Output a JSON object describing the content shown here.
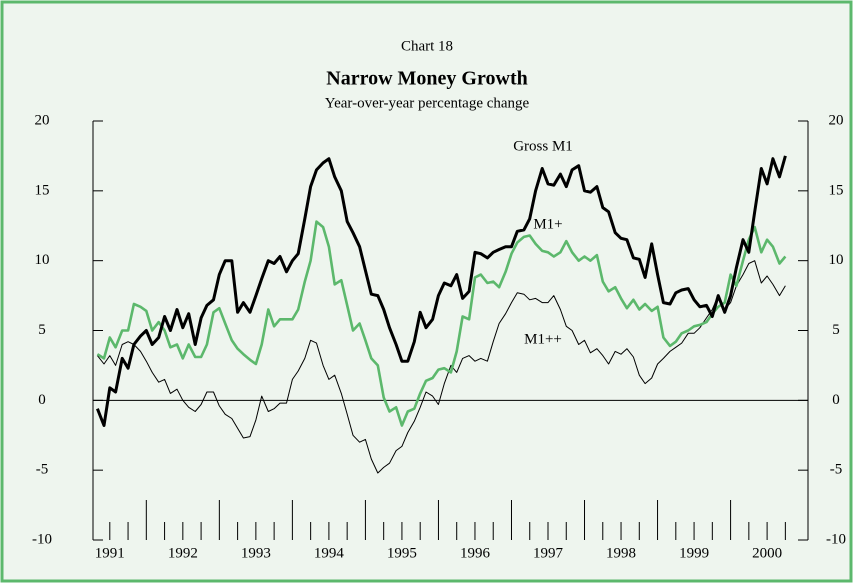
{
  "chart_data": {
    "type": "line",
    "chart_number": "Chart 18",
    "title": "Narrow Money Growth",
    "subtitle": "Year-over-year percentage change",
    "x": [
      1991.33,
      1991.42,
      1991.5,
      1991.58,
      1991.67,
      1991.75,
      1991.83,
      1991.92,
      1992.0,
      1992.08,
      1992.17,
      1992.25,
      1992.33,
      1992.42,
      1992.5,
      1992.58,
      1992.67,
      1992.75,
      1992.83,
      1992.92,
      1993.0,
      1993.08,
      1993.17,
      1993.25,
      1993.33,
      1993.42,
      1993.5,
      1993.58,
      1993.67,
      1993.75,
      1993.83,
      1993.92,
      1994.0,
      1994.08,
      1994.17,
      1994.25,
      1994.33,
      1994.42,
      1994.5,
      1994.58,
      1994.67,
      1994.75,
      1994.83,
      1994.92,
      1995.0,
      1995.08,
      1995.17,
      1995.25,
      1995.33,
      1995.42,
      1995.5,
      1995.58,
      1995.67,
      1995.75,
      1995.83,
      1995.92,
      1996.0,
      1996.08,
      1996.17,
      1996.25,
      1996.33,
      1996.42,
      1996.5,
      1996.58,
      1996.67,
      1996.75,
      1996.83,
      1996.92,
      1997.0,
      1997.08,
      1997.17,
      1997.25,
      1997.33,
      1997.42,
      1997.5,
      1997.58,
      1997.67,
      1997.75,
      1997.83,
      1997.92,
      1998.0,
      1998.08,
      1998.17,
      1998.25,
      1998.33,
      1998.42,
      1998.5,
      1998.58,
      1998.67,
      1998.75,
      1998.83,
      1998.92,
      1999.0,
      1999.08,
      1999.17,
      1999.25,
      1999.33,
      1999.42,
      1999.5,
      1999.58,
      1999.67,
      1999.75,
      1999.83,
      1999.92,
      2000.0,
      2000.08,
      2000.17,
      2000.25,
      2000.33,
      2000.42,
      2000.5,
      2000.58,
      2000.67,
      2000.75
    ],
    "series": [
      {
        "name": "Gross M1",
        "color": "#000000",
        "linewidth": 3,
        "values": [
          -0.6,
          -1.8,
          0.9,
          0.6,
          3.0,
          2.3,
          4.0,
          4.6,
          5.0,
          4.0,
          4.5,
          6.0,
          5.0,
          6.5,
          5.2,
          6.2,
          4.0,
          5.9,
          6.8,
          7.2,
          9.0,
          10.0,
          10.0,
          6.3,
          7.0,
          6.3,
          7.5,
          8.7,
          10.0,
          9.8,
          10.3,
          9.2,
          10.0,
          10.5,
          13.0,
          15.3,
          16.5,
          17.0,
          17.3,
          16.0,
          15.0,
          12.8,
          12.0,
          11.0,
          9.3,
          7.6,
          7.5,
          6.5,
          5.2,
          4.0,
          2.8,
          2.8,
          4.2,
          6.3,
          5.2,
          5.8,
          7.5,
          8.4,
          8.2,
          9.0,
          7.3,
          7.8,
          10.6,
          10.5,
          10.2,
          10.6,
          10.8,
          11.0,
          11.0,
          12.1,
          12.2,
          13.0,
          15.0,
          16.6,
          15.5,
          15.4,
          16.2,
          15.3,
          16.5,
          16.8,
          15.0,
          14.9,
          15.3,
          13.8,
          13.5,
          12.0,
          11.6,
          11.5,
          10.2,
          10.1,
          8.8,
          11.2,
          9.0,
          7.0,
          6.9,
          7.7,
          7.9,
          8.0,
          7.2,
          6.7,
          6.8,
          6.0,
          7.5,
          6.3,
          7.5,
          9.5,
          11.5,
          10.6,
          13.5,
          16.6,
          15.5,
          17.3,
          16.0,
          17.5
        ]
      },
      {
        "name": "M1+",
        "color": "#5cb86c",
        "linewidth": 2.6,
        "values": [
          3.3,
          3.0,
          4.5,
          3.8,
          5.0,
          5.0,
          6.9,
          6.7,
          6.4,
          5.0,
          5.6,
          5.0,
          3.8,
          4.0,
          3.0,
          4.0,
          3.1,
          3.1,
          4.0,
          6.3,
          6.6,
          5.5,
          4.3,
          3.7,
          3.3,
          2.9,
          2.6,
          4.0,
          6.5,
          5.3,
          5.8,
          5.8,
          5.8,
          6.5,
          8.5,
          10.0,
          12.8,
          12.4,
          11.0,
          8.3,
          8.6,
          6.8,
          5.0,
          5.5,
          4.3,
          3.0,
          2.5,
          0.2,
          -0.8,
          -0.5,
          -1.8,
          -0.8,
          -0.6,
          0.5,
          1.4,
          1.6,
          2.2,
          2.3,
          2.0,
          3.5,
          6.0,
          5.8,
          8.8,
          9.0,
          8.4,
          8.5,
          8.1,
          9.2,
          10.5,
          11.3,
          11.7,
          11.8,
          11.2,
          10.7,
          10.6,
          10.3,
          10.6,
          11.4,
          10.6,
          10.0,
          10.3,
          10.0,
          10.4,
          8.5,
          7.8,
          8.1,
          7.3,
          6.6,
          7.2,
          6.5,
          6.9,
          6.4,
          6.7,
          4.5,
          3.9,
          4.2,
          4.8,
          5.0,
          5.3,
          5.4,
          5.6,
          6.2,
          6.7,
          7.0,
          9.0,
          8.2,
          10.0,
          11.5,
          12.4,
          10.6,
          11.5,
          11.0,
          9.8,
          10.3
        ]
      },
      {
        "name": "M1++",
        "color": "#000000",
        "linewidth": 1,
        "values": [
          3.2,
          2.6,
          3.2,
          2.5,
          4.0,
          4.2,
          4.0,
          3.5,
          2.8,
          2.0,
          1.3,
          1.5,
          0.5,
          0.8,
          0.0,
          -0.5,
          -0.8,
          -0.3,
          0.6,
          0.6,
          -0.4,
          -1.0,
          -1.3,
          -2.0,
          -2.7,
          -2.6,
          -1.4,
          0.3,
          -0.8,
          -0.6,
          -0.2,
          -0.2,
          1.5,
          2.1,
          3.0,
          4.3,
          4.1,
          2.5,
          1.5,
          1.8,
          0.5,
          -1.0,
          -2.5,
          -3.0,
          -2.8,
          -4.2,
          -5.2,
          -4.8,
          -4.5,
          -3.6,
          -3.3,
          -2.3,
          -1.5,
          -0.5,
          0.6,
          0.3,
          -0.3,
          1.2,
          2.5,
          2.0,
          3.0,
          3.2,
          2.8,
          3.0,
          2.8,
          4.2,
          5.5,
          6.2,
          7.0,
          7.7,
          7.6,
          7.2,
          7.3,
          7.0,
          7.0,
          7.5,
          6.5,
          5.3,
          5.0,
          4.0,
          4.3,
          3.4,
          3.7,
          3.2,
          2.6,
          3.5,
          3.3,
          3.7,
          3.1,
          1.8,
          1.2,
          1.6,
          2.6,
          3.0,
          3.5,
          3.8,
          4.1,
          4.8,
          4.8,
          5.2,
          5.9,
          6.5,
          7.5,
          6.5,
          7.0,
          8.2,
          9.0,
          9.8,
          10.0,
          8.4,
          8.9,
          8.3,
          7.5,
          8.2
        ]
      }
    ],
    "xlim": [
      1991.27,
      2001.06
    ],
    "xticks": [
      {
        "value": 1991.5,
        "label": "1991"
      },
      {
        "value": 1992.5,
        "label": "1992"
      },
      {
        "value": 1993.5,
        "label": "1993"
      },
      {
        "value": 1994.5,
        "label": "1994"
      },
      {
        "value": 1995.5,
        "label": "1995"
      },
      {
        "value": 1996.5,
        "label": "1996"
      },
      {
        "value": 1997.5,
        "label": "1997"
      },
      {
        "value": 1998.5,
        "label": "1998"
      },
      {
        "value": 1999.5,
        "label": "1999"
      },
      {
        "value": 2000.5,
        "label": "2000"
      }
    ],
    "ylim": [
      -10,
      20
    ],
    "yticks": [
      20,
      15,
      10,
      5,
      0,
      -5,
      -10
    ]
  }
}
